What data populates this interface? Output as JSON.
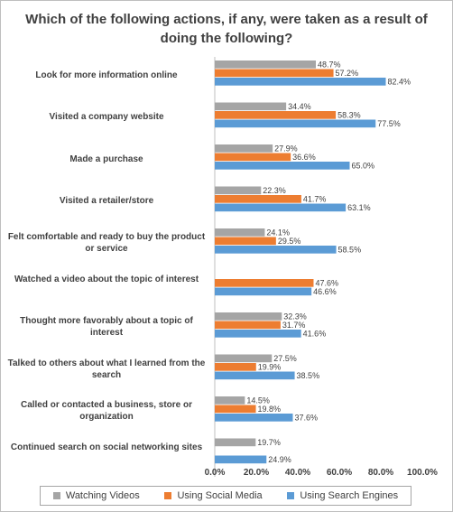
{
  "chart_data": {
    "type": "bar",
    "orientation": "horizontal",
    "title": "Which of the following actions, if any, were taken as a result of doing the following?",
    "categories": [
      "Look for more information online",
      "Visited a company website",
      "Made a purchase",
      "Visited a retailer/store",
      "Felt comfortable and ready to buy the product or service",
      "Watched a video about the topic of interest",
      "Thought more favorably about a topic of interest",
      "Talked to others about what I learned from the search",
      "Called or contacted a business, store or organization",
      "Continued search on social networking sites"
    ],
    "series": [
      {
        "name": "Watching Videos",
        "color": "#a5a5a5",
        "values": [
          48.7,
          34.4,
          27.9,
          22.3,
          24.1,
          null,
          32.3,
          27.5,
          14.5,
          19.7
        ]
      },
      {
        "name": "Using Social Media",
        "color": "#ed7d31",
        "values": [
          57.2,
          58.3,
          36.6,
          41.7,
          29.5,
          47.6,
          31.7,
          19.9,
          19.8,
          null
        ]
      },
      {
        "name": "Using Search Engines",
        "color": "#5b9bd5",
        "values": [
          82.4,
          77.5,
          65.0,
          63.1,
          58.5,
          46.6,
          41.6,
          38.5,
          37.6,
          24.9
        ]
      }
    ],
    "xlim": [
      0,
      100
    ],
    "xticks": [
      "0.0%",
      "20.0%",
      "40.0%",
      "60.0%",
      "80.0%",
      "100.0%"
    ],
    "data_labels": [
      [
        "48.7%",
        "57.2%",
        "82.4%"
      ],
      [
        "34.4%",
        "58.3%",
        "77.5%"
      ],
      [
        "27.9%",
        "36.6%",
        "65.0%"
      ],
      [
        "22.3%",
        "41.7%",
        "63.1%"
      ],
      [
        "24.1%",
        "29.5%",
        "58.5%"
      ],
      [
        null,
        "47.6%",
        "46.6%"
      ],
      [
        "32.3%",
        "31.7%",
        "41.6%"
      ],
      [
        "27.5%",
        "19.9%",
        "38.5%"
      ],
      [
        "14.5%",
        "19.8%",
        "37.6%"
      ],
      [
        "19.7%",
        null,
        "24.9%"
      ]
    ],
    "legend": "bottom",
    "grid": false
  }
}
